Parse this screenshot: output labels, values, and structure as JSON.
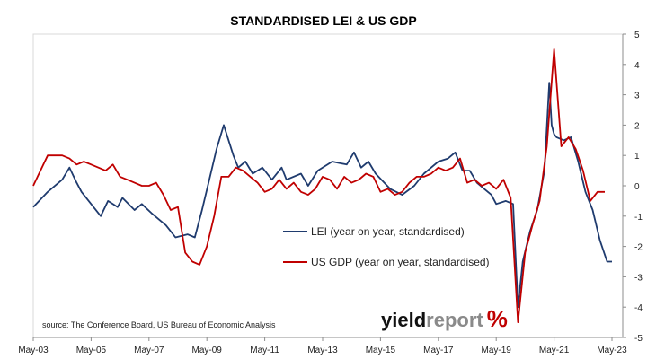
{
  "chart_data": {
    "type": "line",
    "title": "STANDARDISED LEI & US GDP",
    "xlabel": "",
    "ylabel": "",
    "x_ticks": [
      "May-03",
      "May-05",
      "May-07",
      "May-09",
      "May-11",
      "May-13",
      "May-15",
      "May-17",
      "May-19",
      "May-21",
      "May-23"
    ],
    "xlim": [
      "2003-05",
      "2023-05"
    ],
    "ylim": [
      -5,
      5
    ],
    "y_ticks": [
      -5,
      -4,
      -3,
      -2,
      -1,
      0,
      1,
      2,
      3,
      4,
      5
    ],
    "y_axis_side": "right",
    "grid": false,
    "legend_position": "center",
    "source": "source: The Conference Board, US Bureau of Economic Analysis",
    "logo": {
      "part1": "yield",
      "part2": "report",
      "part3": "%"
    },
    "series": [
      {
        "name": "LEI (year on year, standardised)",
        "color": "#1f3b6e",
        "x": [
          "2003-05",
          "2003-11",
          "2004-05",
          "2004-08",
          "2004-11",
          "2005-01",
          "2005-05",
          "2005-09",
          "2005-12",
          "2006-04",
          "2006-06",
          "2006-11",
          "2007-02",
          "2007-06",
          "2007-09",
          "2007-12",
          "2008-04",
          "2008-09",
          "2008-12",
          "2009-03",
          "2009-06",
          "2009-09",
          "2009-12",
          "2010-04",
          "2010-06",
          "2010-09",
          "2010-12",
          "2011-04",
          "2011-08",
          "2011-12",
          "2012-02",
          "2012-08",
          "2012-11",
          "2013-03",
          "2013-09",
          "2014-03",
          "2014-06",
          "2014-09",
          "2014-12",
          "2015-03",
          "2015-09",
          "2016-02",
          "2016-07",
          "2016-11",
          "2017-02",
          "2017-05",
          "2017-09",
          "2017-12",
          "2018-03",
          "2018-06",
          "2018-09",
          "2018-12",
          "2019-03",
          "2019-05",
          "2019-09",
          "2019-12",
          "2020-02",
          "2020-04",
          "2020-07",
          "2020-10",
          "2021-01",
          "2021-03",
          "2021-04",
          "2021-05",
          "2021-06",
          "2021-09",
          "2021-12",
          "2022-03",
          "2022-06",
          "2022-09",
          "2022-12",
          "2023-03",
          "2023-05"
        ],
        "y": [
          -0.7,
          -0.2,
          0.2,
          0.6,
          0.1,
          -0.2,
          -0.6,
          -1.0,
          -0.5,
          -0.7,
          -0.4,
          -0.8,
          -0.6,
          -0.9,
          -1.1,
          -1.3,
          -1.7,
          -1.6,
          -1.7,
          -0.8,
          0.2,
          1.2,
          2.0,
          1.0,
          0.6,
          0.8,
          0.4,
          0.6,
          0.2,
          0.6,
          0.2,
          0.4,
          0.0,
          0.5,
          0.8,
          0.7,
          1.1,
          0.6,
          0.8,
          0.4,
          -0.1,
          -0.3,
          0.0,
          0.4,
          0.6,
          0.8,
          0.9,
          1.1,
          0.5,
          0.5,
          0.1,
          -0.1,
          -0.3,
          -0.6,
          -0.5,
          -0.6,
          -4.0,
          -2.5,
          -1.5,
          -0.8,
          0.5,
          3.4,
          2.0,
          1.7,
          1.6,
          1.5,
          1.6,
          0.8,
          -0.2,
          -0.8,
          -1.8,
          -2.5,
          -2.5
        ]
      },
      {
        "name": "US GDP (year on year, standardised)",
        "color": "#c00000",
        "x": [
          "2003-05",
          "2003-08",
          "2003-11",
          "2004-02",
          "2004-05",
          "2004-08",
          "2004-11",
          "2005-02",
          "2005-05",
          "2005-08",
          "2005-11",
          "2006-02",
          "2006-05",
          "2006-08",
          "2006-11",
          "2007-02",
          "2007-05",
          "2007-08",
          "2007-11",
          "2008-02",
          "2008-05",
          "2008-08",
          "2008-11",
          "2009-02",
          "2009-05",
          "2009-08",
          "2009-11",
          "2010-02",
          "2010-05",
          "2010-08",
          "2010-11",
          "2011-02",
          "2011-05",
          "2011-08",
          "2011-11",
          "2012-02",
          "2012-05",
          "2012-08",
          "2012-11",
          "2013-02",
          "2013-05",
          "2013-08",
          "2013-11",
          "2014-02",
          "2014-05",
          "2014-08",
          "2014-11",
          "2015-02",
          "2015-05",
          "2015-08",
          "2015-11",
          "2016-02",
          "2016-05",
          "2016-08",
          "2016-11",
          "2017-02",
          "2017-05",
          "2017-08",
          "2017-11",
          "2018-02",
          "2018-05",
          "2018-08",
          "2018-11",
          "2019-02",
          "2019-05",
          "2019-08",
          "2019-11",
          "2020-02",
          "2020-05",
          "2020-08",
          "2020-11",
          "2021-02",
          "2021-05",
          "2021-08",
          "2021-11",
          "2022-02",
          "2022-05",
          "2022-08",
          "2022-11",
          "2023-02"
        ],
        "y": [
          0.0,
          0.5,
          1.0,
          1.0,
          1.0,
          0.9,
          0.7,
          0.8,
          0.7,
          0.6,
          0.5,
          0.7,
          0.3,
          0.2,
          0.1,
          0.0,
          0.0,
          0.1,
          -0.3,
          -0.8,
          -0.7,
          -2.2,
          -2.5,
          -2.6,
          -2.0,
          -1.0,
          0.3,
          0.3,
          0.6,
          0.5,
          0.3,
          0.1,
          -0.2,
          -0.1,
          0.2,
          -0.1,
          0.1,
          -0.2,
          -0.3,
          -0.1,
          0.3,
          0.2,
          -0.1,
          0.3,
          0.1,
          0.2,
          0.4,
          0.3,
          -0.2,
          -0.1,
          -0.3,
          -0.2,
          0.1,
          0.3,
          0.3,
          0.4,
          0.6,
          0.5,
          0.6,
          0.9,
          0.1,
          0.2,
          0.0,
          0.1,
          -0.1,
          0.2,
          -0.4,
          -4.5,
          -2.2,
          -1.3,
          -0.5,
          1.3,
          4.5,
          1.3,
          1.6,
          1.2,
          0.5,
          -0.5,
          -0.2,
          -0.2
        ]
      }
    ]
  }
}
